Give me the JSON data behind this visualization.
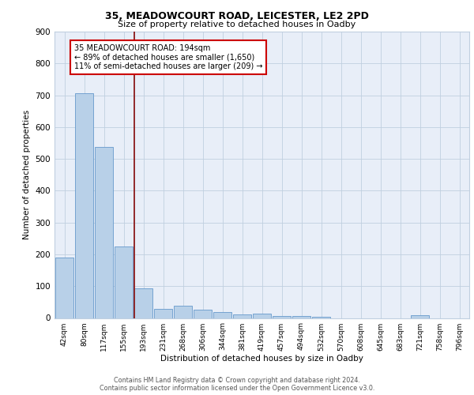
{
  "title1": "35, MEADOWCOURT ROAD, LEICESTER, LE2 2PD",
  "title2": "Size of property relative to detached houses in Oadby",
  "xlabel": "Distribution of detached houses by size in Oadby",
  "ylabel": "Number of detached properties",
  "bin_labels": [
    "42sqm",
    "80sqm",
    "117sqm",
    "155sqm",
    "193sqm",
    "231sqm",
    "268sqm",
    "306sqm",
    "344sqm",
    "381sqm",
    "419sqm",
    "457sqm",
    "494sqm",
    "532sqm",
    "570sqm",
    "608sqm",
    "645sqm",
    "683sqm",
    "721sqm",
    "758sqm",
    "796sqm"
  ],
  "bar_values": [
    190,
    707,
    537,
    225,
    92,
    28,
    39,
    25,
    18,
    11,
    13,
    7,
    5,
    3,
    0,
    0,
    0,
    0,
    8,
    0,
    0
  ],
  "bar_color": "#b8d0e8",
  "bar_edge_color": "#6699cc",
  "vline_x_index": 4,
  "vline_color": "#8b1a1a",
  "annotation_text": "35 MEADOWCOURT ROAD: 194sqm\n← 89% of detached houses are smaller (1,650)\n11% of semi-detached houses are larger (209) →",
  "annotation_box_color": "#ffffff",
  "annotation_box_edge_color": "#cc0000",
  "ylim": [
    0,
    900
  ],
  "yticks": [
    0,
    100,
    200,
    300,
    400,
    500,
    600,
    700,
    800,
    900
  ],
  "footer_text": "Contains HM Land Registry data © Crown copyright and database right 2024.\nContains public sector information licensed under the Open Government Licence v3.0.",
  "plot_bg_color": "#e8eef8"
}
